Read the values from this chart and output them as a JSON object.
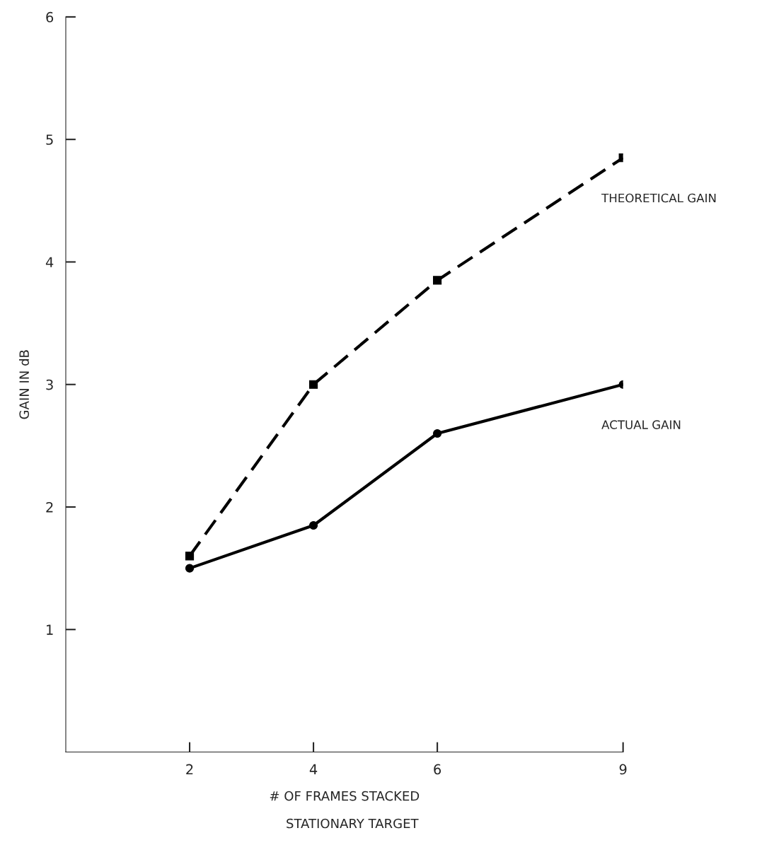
{
  "chart_data": {
    "type": "line",
    "x": [
      2,
      4,
      6,
      9
    ],
    "series": [
      {
        "name": "THEORETICAL GAIN",
        "color": "#000000",
        "values": [
          1.6,
          3.0,
          3.85,
          4.85
        ],
        "line_style": "dashed",
        "marker": "square"
      },
      {
        "name": "ACTUAL GAIN",
        "color": "#000000",
        "values": [
          1.5,
          1.85,
          2.6,
          3.0
        ],
        "line_style": "solid",
        "marker": "circle"
      }
    ],
    "xlim": [
      0,
      9
    ],
    "xticks": [
      2,
      4,
      6,
      9
    ],
    "ylim": [
      0,
      6
    ],
    "yticks": [
      1,
      2,
      3,
      4,
      5,
      6
    ],
    "xlabel": "# OF FRAMES STACKED",
    "ylabel": "GAIN IN dB",
    "annotations": [
      "STATIONARY TARGET"
    ],
    "grid": false,
    "legend": false
  }
}
